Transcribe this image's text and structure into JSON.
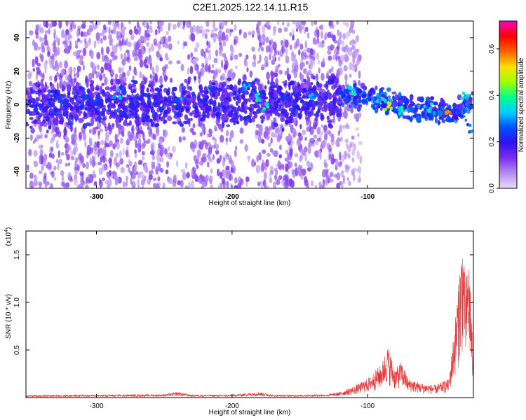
{
  "title": "C2E1.2025.122.14.11.R15",
  "chart_data": [
    {
      "type": "heatmap",
      "xlabel": "Height of straight line (km)",
      "ylabel": "Frequency (Hz)",
      "xlim": [
        -352,
        -22
      ],
      "ylim": [
        -50,
        50
      ],
      "xticks": [
        -300,
        -200,
        -100
      ],
      "xtick_labels": [
        "-300",
        "-200",
        "-100"
      ],
      "yticks": [
        40,
        20,
        0,
        -20,
        -40
      ],
      "ytick_labels": [
        "40",
        "20",
        "0",
        "-20",
        "-40"
      ],
      "colorbar": {
        "label": "Normalized spectral amplitude",
        "range": [
          0.0,
          0.72
        ],
        "ticks": [
          0.0,
          0.2,
          0.4,
          0.6
        ],
        "tick_labels": [
          "0.0",
          "0.2",
          "0.4",
          "0.6"
        ],
        "colormap": [
          "#e8dcf8",
          "#b48cf0",
          "#7a2ef0",
          "#3010f0",
          "#0050ff",
          "#00d0ff",
          "#00ff90",
          "#a0ff00",
          "#ffe000",
          "#ff6000",
          "#ff0000",
          "#ff00c0"
        ]
      },
      "ridge": {
        "x": [
          -352,
          -300,
          -250,
          -200,
          -150,
          -100,
          -80,
          -60,
          -40,
          -30,
          -22
        ],
        "y": [
          0,
          0,
          1,
          1,
          2,
          5,
          0,
          -3,
          -5,
          -2,
          4
        ]
      },
      "hotspots": [
        {
          "x": -285,
          "y": 6,
          "amp": 0.38
        },
        {
          "x": -240,
          "y": 3,
          "amp": 0.32
        },
        {
          "x": -190,
          "y": 10,
          "amp": 0.35
        },
        {
          "x": -180,
          "y": 4,
          "amp": 0.42
        },
        {
          "x": -175,
          "y": -2,
          "amp": 0.4
        },
        {
          "x": -140,
          "y": 5,
          "amp": 0.34
        },
        {
          "x": -110,
          "y": 8,
          "amp": 0.4
        },
        {
          "x": -90,
          "y": 4,
          "amp": 0.38
        },
        {
          "x": -85,
          "y": -1,
          "amp": 0.55
        },
        {
          "x": -75,
          "y": -4,
          "amp": 0.42
        },
        {
          "x": -55,
          "y": -2,
          "amp": 0.4
        },
        {
          "x": -40,
          "y": -5,
          "amp": 0.7
        },
        {
          "x": -28,
          "y": 5,
          "amp": 0.4
        },
        {
          "x": -24,
          "y": -14,
          "amp": 0.3
        }
      ],
      "scatter_region_x": [
        -352,
        -120
      ],
      "compact_region_x": [
        -120,
        -22
      ]
    },
    {
      "type": "line",
      "xlabel": "Height of straight line (km)",
      "ylabel": "SNR (10 * v/v)",
      "multiplier_label": "(x10",
      "multiplier_exp": "4",
      "multiplier_close": ")",
      "xlim": [
        -352,
        -22
      ],
      "ylim": [
        0,
        1.75
      ],
      "xticks": [
        -300,
        -200,
        -100
      ],
      "xtick_labels": [
        "-300",
        "-200",
        "-100"
      ],
      "yticks": [
        0.5,
        1.0,
        1.5
      ],
      "ytick_labels": [
        "0.5",
        "1.0",
        "1.5"
      ],
      "color": "#ee3333",
      "envelope": {
        "x": [
          -352,
          -300,
          -250,
          -240,
          -230,
          -200,
          -180,
          -170,
          -150,
          -130,
          -120,
          -110,
          -100,
          -90,
          -85,
          -80,
          -75,
          -70,
          -60,
          -50,
          -40,
          -35,
          -30,
          -28,
          -25,
          -22
        ],
        "y": [
          0.025,
          0.03,
          0.035,
          0.06,
          0.03,
          0.03,
          0.06,
          0.03,
          0.03,
          0.035,
          0.06,
          0.12,
          0.2,
          0.35,
          0.55,
          0.3,
          0.38,
          0.2,
          0.15,
          0.13,
          0.2,
          0.9,
          1.75,
          1.2,
          1.5,
          0.35
        ]
      }
    }
  ]
}
